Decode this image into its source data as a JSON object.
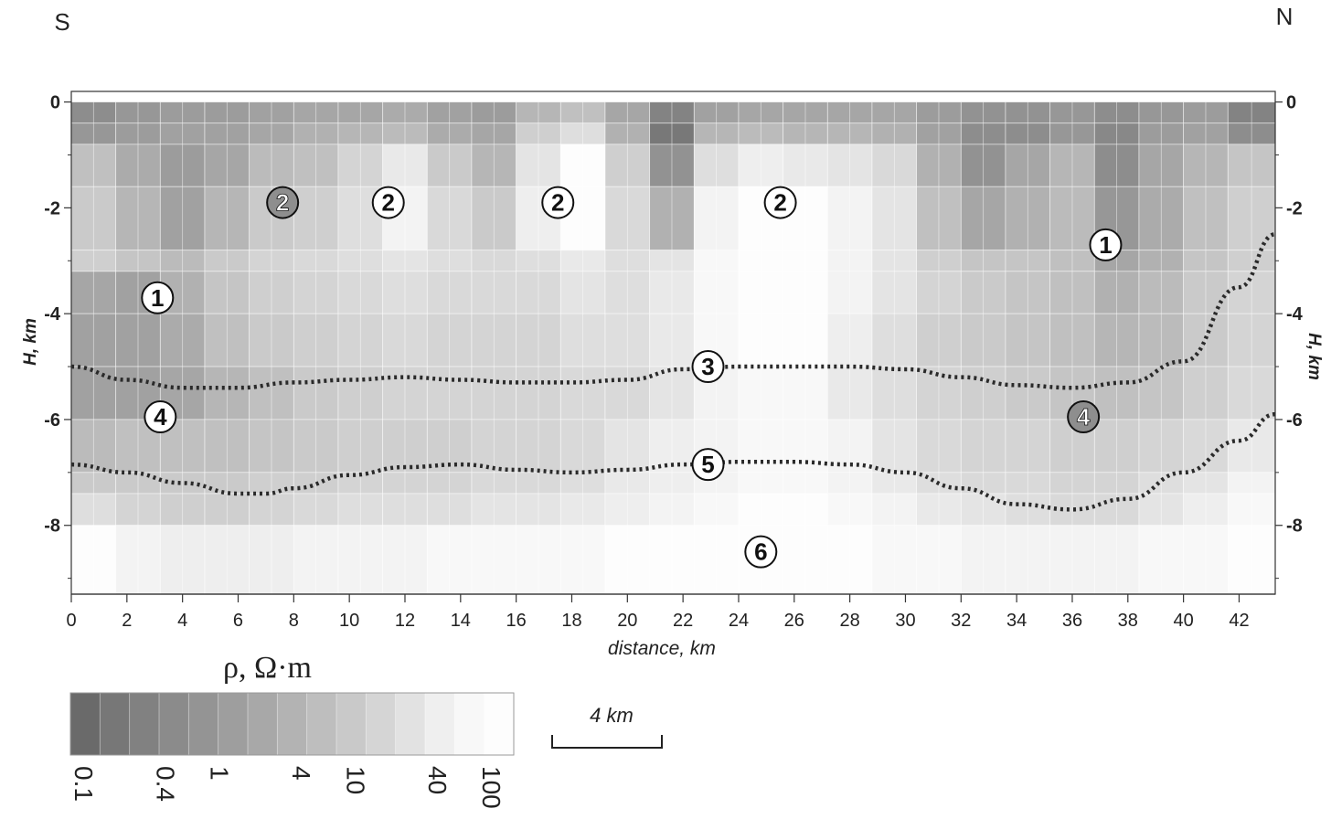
{
  "chart_data": {
    "type": "heatmap",
    "title": "",
    "xlabel": "distance, km",
    "ylabel_left": "H, km",
    "ylabel_right": "H, km",
    "xlim": [
      0,
      43.3
    ],
    "ylim": [
      -9.3,
      0.2
    ],
    "x_ticks": [
      0,
      2,
      4,
      6,
      8,
      10,
      12,
      14,
      16,
      18,
      20,
      22,
      24,
      26,
      28,
      30,
      32,
      34,
      36,
      38,
      40,
      42
    ],
    "x_tick_labels": [
      "0",
      "2",
      "4",
      "6",
      "8",
      "10",
      "12",
      "14",
      "16",
      "18",
      "20",
      "22",
      "24",
      "26",
      "28",
      "30",
      "32",
      "34",
      "36",
      "38",
      "40",
      "42"
    ],
    "y_ticks": [
      0,
      -2,
      -4,
      -6,
      -8
    ],
    "y_tick_labels": [
      "0",
      "-2",
      "-4",
      "-6",
      "-8"
    ],
    "direction_labels": {
      "left": "S",
      "right": "N"
    },
    "colorbar": {
      "title": "ρ, Ω·m",
      "tick_values": [
        0.1,
        0.4,
        1,
        4,
        10,
        40,
        100
      ],
      "tick_labels": [
        "0.1",
        "0.4",
        "1",
        "4",
        "10",
        "40",
        "100"
      ],
      "colors": [
        "#6a6a6a",
        "#777777",
        "#818181",
        "#8b8b8b",
        "#949494",
        "#9e9e9e",
        "#a8a8a8",
        "#b3b3b3",
        "#bebebe",
        "#c9c9c9",
        "#d5d5d5",
        "#e2e2e2",
        "#efefef",
        "#f8f8f8",
        "#fdfdfd"
      ]
    },
    "scale_bar": {
      "label": "4 km",
      "length_km": 4
    },
    "resistivity_section": {
      "x_breaks": [
        0,
        1.6,
        3.2,
        4.8,
        6.4,
        8.0,
        9.6,
        11.2,
        12.8,
        14.4,
        16.0,
        17.6,
        19.2,
        20.8,
        22.4,
        24.0,
        25.6,
        27.2,
        28.8,
        30.4,
        32.0,
        33.6,
        35.2,
        36.8,
        38.4,
        40.0,
        41.6,
        43.3
      ],
      "depth_breaks": [
        0,
        -0.4,
        -0.8,
        -1.6,
        -2.8,
        -3.2,
        -4.0,
        -5.0,
        -6.0,
        -7.0,
        -7.4,
        -8.0,
        -9.3
      ],
      "log10_resistivity": [
        [
          -0.2,
          0.0,
          0.1,
          0.1,
          0.2,
          0.3,
          0.3,
          0.4,
          0.2,
          0.1,
          0.6,
          0.8,
          0.3,
          -0.4,
          0.2,
          0.3,
          0.3,
          0.3,
          0.3,
          0.1,
          -0.1,
          -0.1,
          0.0,
          -0.2,
          0.0,
          0.1,
          -0.4
        ],
        [
          0.0,
          0.1,
          0.2,
          0.2,
          0.3,
          0.5,
          0.6,
          0.7,
          0.4,
          0.3,
          1.1,
          1.4,
          0.5,
          -0.6,
          0.6,
          0.7,
          0.6,
          0.6,
          0.5,
          0.2,
          -0.2,
          -0.2,
          0.0,
          -0.3,
          0.1,
          0.2,
          -0.2
        ],
        [
          0.8,
          0.4,
          0.1,
          0.3,
          0.7,
          0.8,
          1.2,
          1.6,
          1.0,
          0.6,
          1.5,
          2.0,
          1.1,
          -0.1,
          1.4,
          1.7,
          1.6,
          1.5,
          1.3,
          0.5,
          -0.1,
          0.3,
          0.6,
          -0.2,
          0.3,
          0.6,
          0.9
        ],
        [
          1.0,
          0.6,
          0.2,
          0.6,
          1.0,
          1.1,
          1.4,
          1.8,
          1.3,
          1.0,
          1.7,
          2.1,
          1.3,
          0.5,
          1.8,
          2.0,
          2.0,
          1.8,
          1.5,
          0.8,
          0.3,
          0.5,
          0.7,
          0.0,
          0.4,
          0.8,
          1.1
        ],
        [
          1.1,
          0.9,
          0.7,
          1.0,
          1.2,
          1.3,
          1.4,
          1.5,
          1.4,
          1.3,
          1.4,
          1.6,
          1.4,
          1.5,
          1.9,
          2.0,
          2.0,
          1.8,
          1.5,
          1.1,
          0.9,
          0.9,
          0.8,
          0.3,
          0.5,
          0.9,
          1.1
        ],
        [
          0.3,
          0.2,
          0.5,
          0.9,
          1.1,
          1.2,
          1.3,
          1.4,
          1.3,
          1.3,
          1.3,
          1.5,
          1.4,
          1.6,
          1.9,
          2.0,
          2.0,
          1.8,
          1.5,
          1.2,
          1.0,
          0.9,
          0.8,
          0.5,
          0.7,
          1.0,
          1.2
        ],
        [
          0.2,
          0.2,
          0.4,
          0.8,
          1.0,
          1.1,
          1.2,
          1.3,
          1.2,
          1.2,
          1.2,
          1.4,
          1.4,
          1.6,
          1.9,
          2.0,
          2.0,
          1.7,
          1.4,
          1.1,
          1.0,
          0.9,
          0.8,
          0.6,
          0.7,
          1.0,
          1.2
        ],
        [
          0.2,
          0.2,
          0.3,
          0.6,
          0.8,
          1.0,
          1.1,
          1.2,
          1.2,
          1.2,
          1.2,
          1.3,
          1.3,
          1.5,
          1.8,
          1.9,
          1.9,
          1.6,
          1.4,
          1.2,
          1.1,
          1.0,
          0.9,
          0.8,
          0.9,
          1.1,
          1.3
        ],
        [
          0.7,
          0.8,
          0.8,
          0.8,
          0.9,
          1.0,
          1.1,
          1.1,
          1.1,
          1.2,
          1.2,
          1.3,
          1.5,
          1.7,
          1.8,
          1.9,
          1.9,
          1.8,
          1.5,
          1.3,
          1.2,
          1.2,
          1.1,
          1.1,
          1.2,
          1.3,
          1.6
        ],
        [
          1.0,
          1.0,
          1.0,
          1.0,
          1.1,
          1.1,
          1.2,
          1.2,
          1.2,
          1.3,
          1.3,
          1.4,
          1.6,
          1.7,
          1.8,
          1.9,
          1.9,
          1.8,
          1.6,
          1.4,
          1.3,
          1.3,
          1.2,
          1.2,
          1.4,
          1.5,
          1.8
        ],
        [
          1.4,
          1.2,
          1.1,
          1.1,
          1.2,
          1.3,
          1.4,
          1.4,
          1.4,
          1.5,
          1.5,
          1.6,
          1.7,
          1.8,
          1.9,
          2.0,
          2.0,
          1.9,
          1.8,
          1.6,
          1.5,
          1.4,
          1.3,
          1.3,
          1.5,
          1.7,
          1.9
        ],
        [
          2.0,
          1.8,
          1.7,
          1.7,
          1.7,
          1.8,
          1.8,
          1.8,
          1.9,
          1.9,
          1.9,
          1.9,
          2.0,
          2.0,
          2.0,
          2.0,
          2.0,
          2.0,
          1.9,
          1.9,
          1.8,
          1.8,
          1.8,
          1.8,
          1.9,
          1.9,
          2.0
        ]
      ]
    },
    "boundaries": [
      {
        "marker": "3",
        "x": [
          0,
          2,
          4,
          6,
          8,
          10,
          12,
          14,
          16,
          18,
          20,
          22,
          24,
          26,
          28,
          30,
          32,
          34,
          36,
          38,
          40,
          42,
          43.3
        ],
        "y": [
          -5.0,
          -5.25,
          -5.4,
          -5.4,
          -5.3,
          -5.25,
          -5.2,
          -5.25,
          -5.3,
          -5.3,
          -5.25,
          -5.05,
          -5.0,
          -5.0,
          -5.0,
          -5.05,
          -5.2,
          -5.35,
          -5.4,
          -5.3,
          -4.9,
          -3.5,
          -2.5
        ]
      },
      {
        "marker": "5",
        "x": [
          0,
          2,
          4,
          6,
          7,
          8,
          10,
          12,
          14,
          16,
          18,
          20,
          22,
          24,
          26,
          28,
          30,
          32,
          34,
          36,
          38,
          40,
          42,
          43.3
        ],
        "y": [
          -6.85,
          -7.0,
          -7.2,
          -7.4,
          -7.4,
          -7.3,
          -7.05,
          -6.9,
          -6.85,
          -6.95,
          -7.0,
          -6.95,
          -6.85,
          -6.8,
          -6.8,
          -6.85,
          -7.0,
          -7.3,
          -7.6,
          -7.7,
          -7.5,
          -7.0,
          -6.4,
          -5.9
        ]
      }
    ],
    "annotations": [
      {
        "label": "1",
        "x": 3.1,
        "y": -3.7,
        "style": "light"
      },
      {
        "label": "1",
        "x": 37.2,
        "y": -2.7,
        "style": "light"
      },
      {
        "label": "2",
        "x": 7.6,
        "y": -1.9,
        "style": "dark"
      },
      {
        "label": "2",
        "x": 11.4,
        "y": -1.9,
        "style": "light"
      },
      {
        "label": "2",
        "x": 17.5,
        "y": -1.9,
        "style": "light"
      },
      {
        "label": "2",
        "x": 25.5,
        "y": -1.9,
        "style": "light"
      },
      {
        "label": "3",
        "x": 22.9,
        "y": -5.0,
        "style": "light"
      },
      {
        "label": "4",
        "x": 3.2,
        "y": -5.95,
        "style": "light"
      },
      {
        "label": "4",
        "x": 36.4,
        "y": -5.95,
        "style": "dark"
      },
      {
        "label": "5",
        "x": 22.9,
        "y": -6.85,
        "style": "light"
      },
      {
        "label": "6",
        "x": 24.8,
        "y": -8.5,
        "style": "light"
      }
    ]
  }
}
